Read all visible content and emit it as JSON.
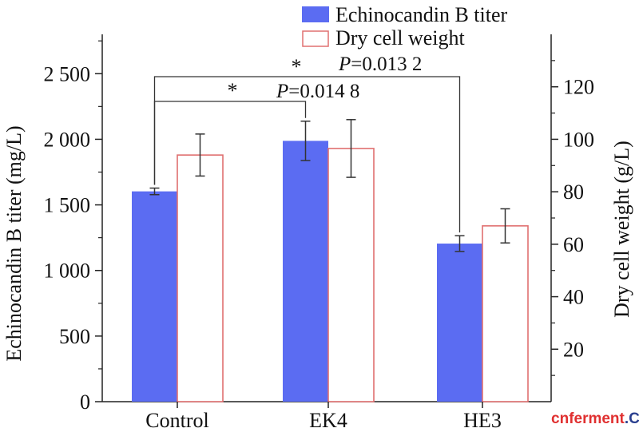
{
  "chart_data": {
    "type": "bar",
    "categories": [
      "Control",
      "EK4",
      "HE3"
    ],
    "series": [
      {
        "name": "Echinocandin B titer",
        "axis": "left",
        "style": "filled",
        "color": "#5b6cf2",
        "values": [
          1603,
          1988,
          1205
        ],
        "errors": [
          25,
          150,
          60
        ]
      },
      {
        "name": "Dry cell weight",
        "axis": "right",
        "style": "outline",
        "color": "#e07070",
        "values": [
          94,
          96.5,
          67
        ],
        "errors": [
          8,
          11,
          6.5
        ]
      }
    ],
    "y_left": {
      "label": "Echinocandin B titer (mg/L)",
      "lim": [
        0,
        2800
      ],
      "ticks": [
        0,
        500,
        1000,
        1500,
        2000,
        2500
      ],
      "tick_labels": [
        "0",
        "500",
        "1 000",
        "1 500",
        "2 000",
        "2 500"
      ]
    },
    "y_right": {
      "label": "Dry cell weight (g/L)",
      "lim": [
        0,
        140
      ],
      "ticks": [
        20,
        40,
        60,
        80,
        100,
        120
      ],
      "tick_labels": [
        "20",
        "40",
        "60",
        "80",
        "100",
        "120"
      ]
    },
    "legend": {
      "position": "top-right"
    },
    "annotations": [
      {
        "from": "Control",
        "to": "EK4",
        "star": "*",
        "p_italic": "P",
        "p_value": "=0.014 8"
      },
      {
        "from": "Control",
        "to": "HE3",
        "star": "*",
        "p_italic": "P",
        "p_value": "=0.013 2"
      }
    ]
  },
  "watermark": {
    "part1": "cn",
    "part2": "ferment",
    "part3": ".COM",
    "color1": "#e03030",
    "color2": "#2a3f8f"
  }
}
